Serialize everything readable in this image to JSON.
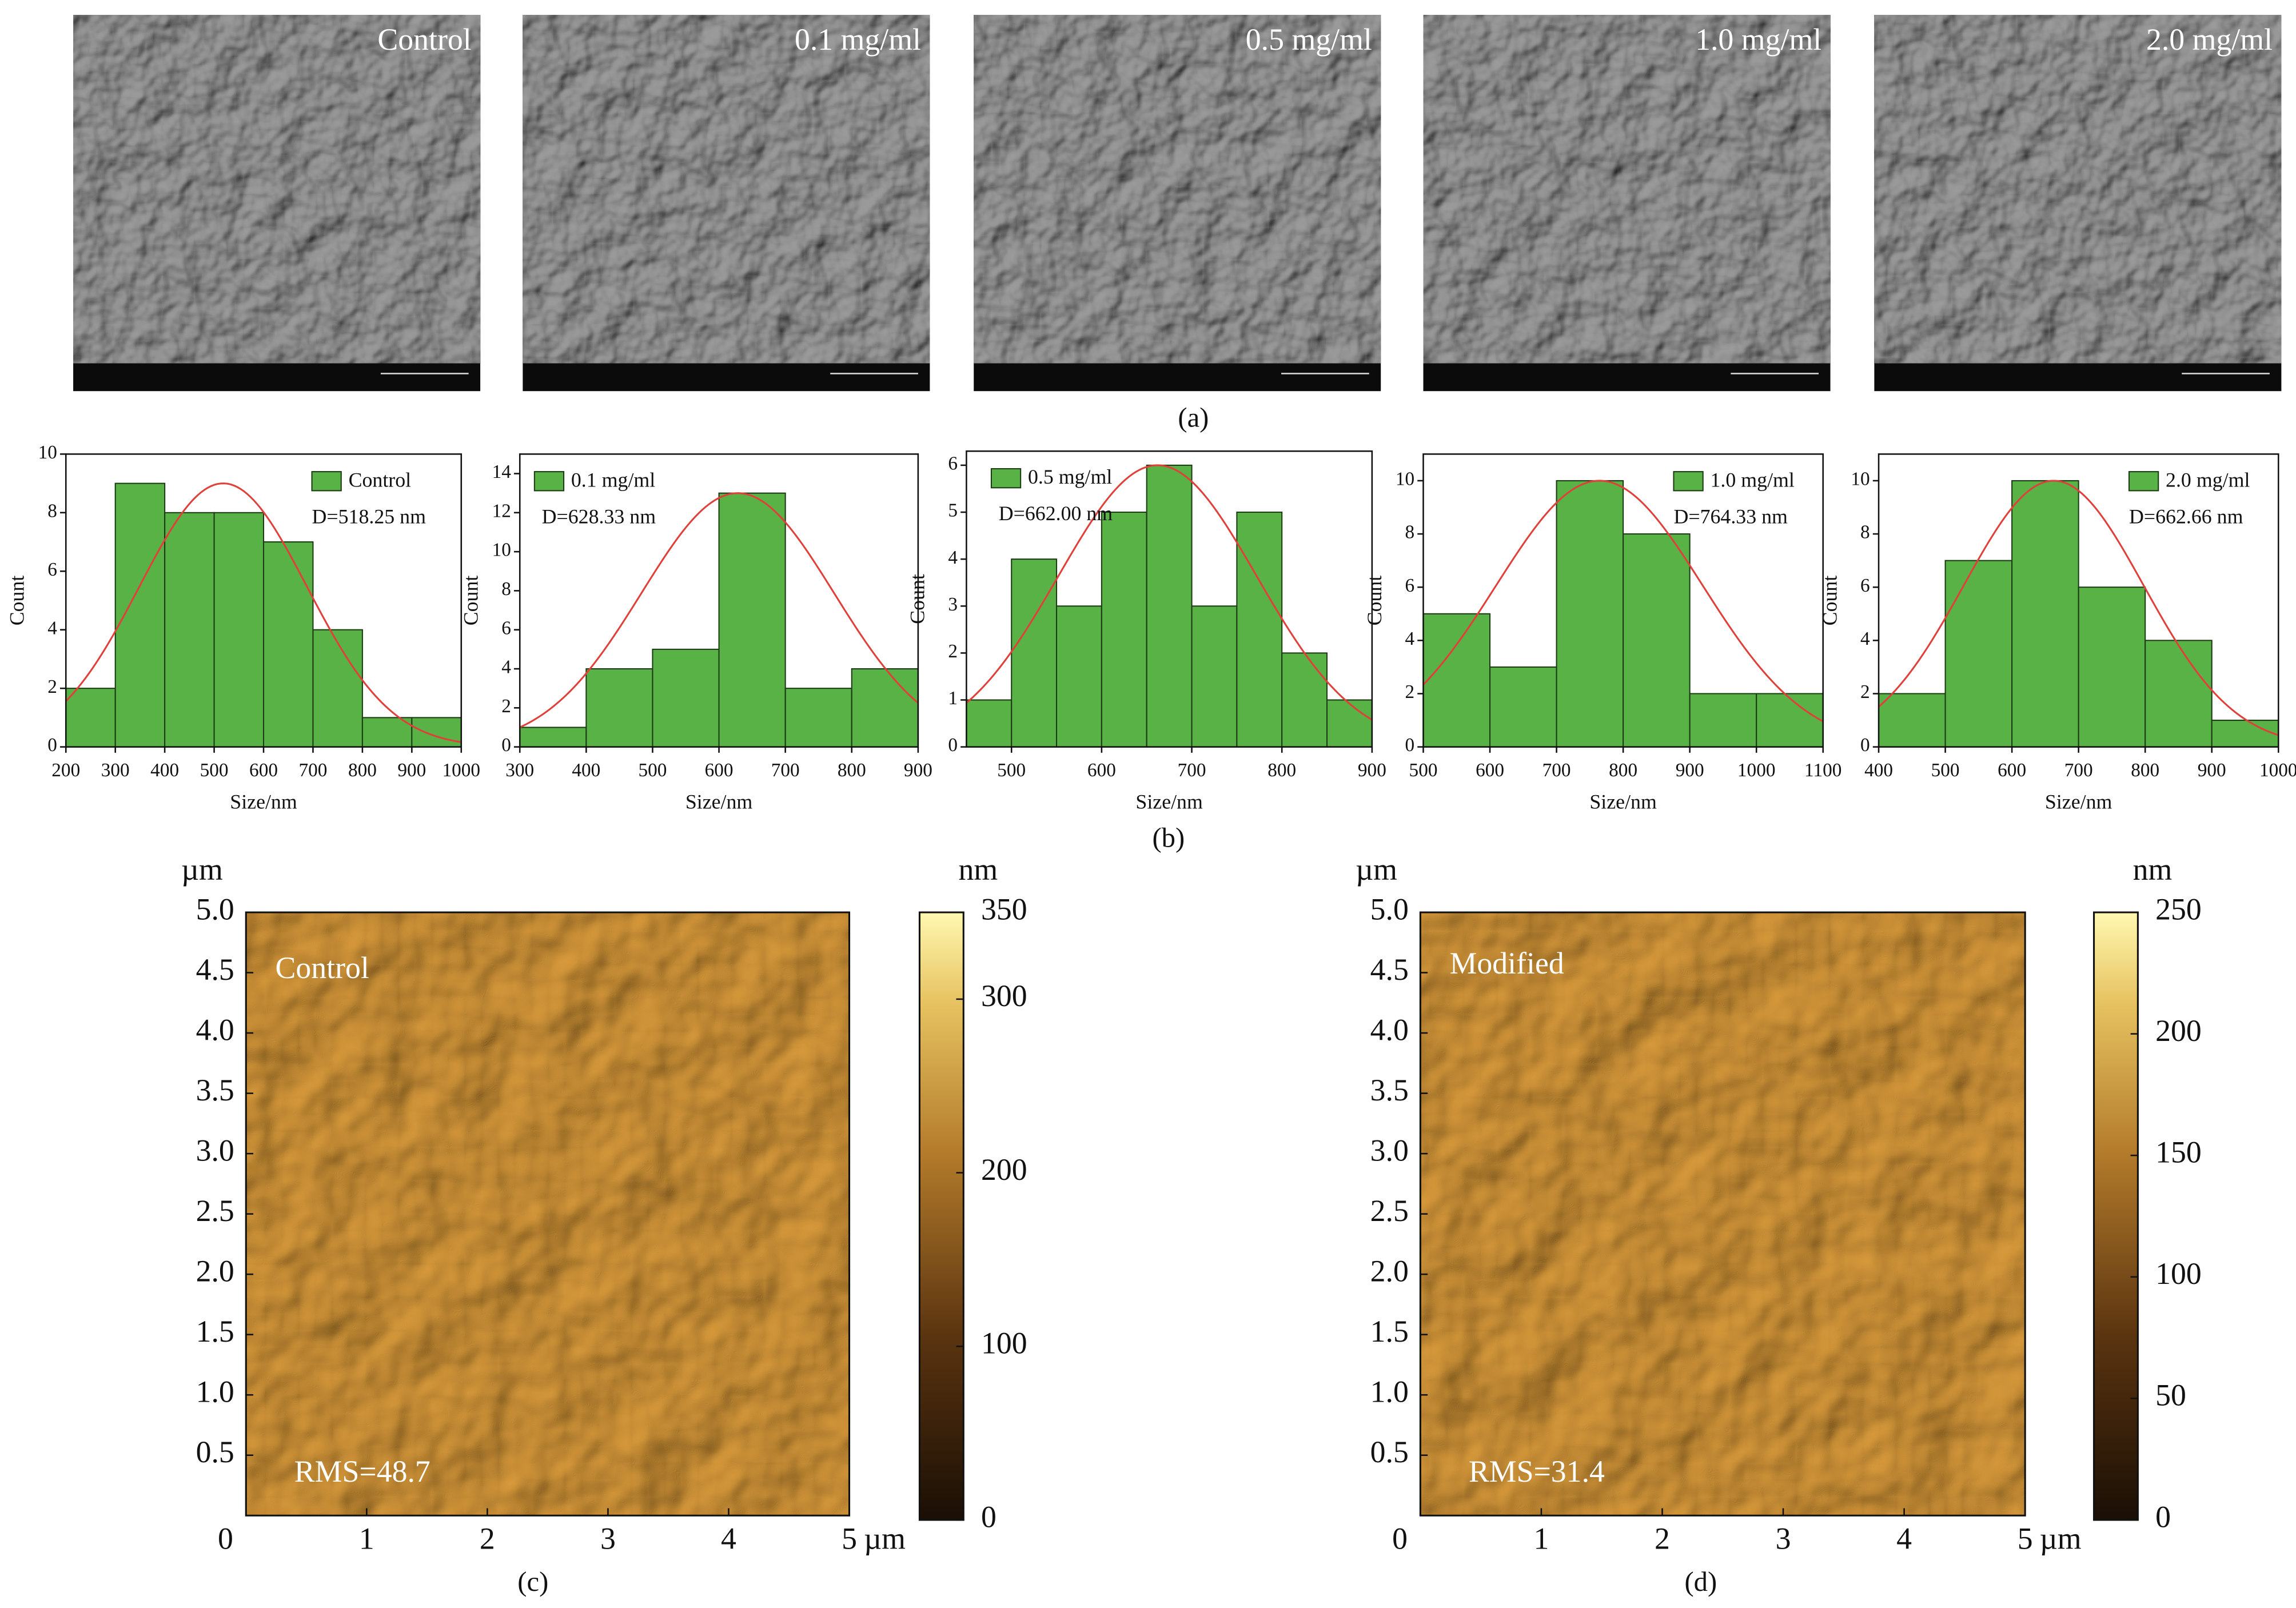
{
  "sem": {
    "labels": [
      "Control",
      "0.1 mg/ml",
      "0.5 mg/ml",
      "1.0 mg/ml",
      "2.0 mg/ml"
    ],
    "caption": "(a)"
  },
  "histogram_caption": "(b)",
  "chart_data": [
    {
      "type": "histogram",
      "bins": [
        200,
        300,
        400,
        500,
        600,
        700,
        800,
        900,
        1000
      ],
      "series": [
        {
          "name": "Control",
          "color": "#58b246",
          "values": [
            2,
            9,
            8,
            8,
            7,
            4,
            1,
            1
          ]
        }
      ],
      "annotation": "D=518.25 nm",
      "legend": "upper right",
      "fit": {
        "color": "#e0403a",
        "mean": 518.25,
        "sigma": 170,
        "peak": 9
      },
      "xlim": [
        200,
        1000
      ],
      "xticks": [
        200,
        300,
        400,
        500,
        600,
        700,
        800,
        900,
        1000
      ],
      "ylim": [
        0,
        10
      ],
      "yticks": [
        0,
        2,
        4,
        6,
        8,
        10
      ],
      "xlabel": "Size/nm",
      "ylabel": "Count"
    },
    {
      "type": "histogram",
      "bins": [
        300,
        400,
        500,
        600,
        700,
        800,
        900
      ],
      "series": [
        {
          "name": "0.1 mg/ml",
          "color": "#58b246",
          "values": [
            1,
            4,
            5,
            13,
            3,
            4
          ]
        }
      ],
      "annotation": "D=628.33 nm",
      "legend": "upper left",
      "fit": {
        "color": "#e0403a",
        "mean": 628.33,
        "sigma": 145,
        "peak": 13
      },
      "xlim": [
        300,
        900
      ],
      "xticks": [
        300,
        400,
        500,
        600,
        700,
        800,
        900
      ],
      "ylim": [
        0,
        15
      ],
      "yticks": [
        0,
        2,
        4,
        6,
        8,
        10,
        12,
        14
      ],
      "xlabel": "Size/nm",
      "ylabel": "Count"
    },
    {
      "type": "histogram",
      "bins": [
        450,
        500,
        550,
        600,
        650,
        700,
        750,
        800,
        850,
        900
      ],
      "series": [
        {
          "name": "0.5 mg/ml",
          "color": "#58b246",
          "values": [
            1,
            4,
            3,
            5,
            6,
            3,
            5,
            2,
            1
          ]
        }
      ],
      "annotation": "D=662.00 nm",
      "legend": "upper left",
      "fit": {
        "color": "#e0403a",
        "mean": 662.0,
        "sigma": 110,
        "peak": 6
      },
      "xlim": [
        450,
        900
      ],
      "xticks": [
        500,
        600,
        700,
        800,
        900
      ],
      "ylim": [
        0,
        6.3
      ],
      "yticks": [
        0,
        1,
        2,
        3,
        4,
        5,
        6
      ],
      "xlabel": "Size/nm",
      "ylabel": "Count"
    },
    {
      "type": "histogram",
      "bins": [
        500,
        600,
        700,
        800,
        900,
        1000,
        1100
      ],
      "series": [
        {
          "name": "1.0 mg/ml",
          "color": "#58b246",
          "values": [
            5,
            3,
            10,
            8,
            2,
            2
          ]
        }
      ],
      "annotation": "D=764.33 nm",
      "legend": "upper right",
      "fit": {
        "color": "#e0403a",
        "mean": 764.33,
        "sigma": 155,
        "peak": 10
      },
      "xlim": [
        500,
        1100
      ],
      "xticks": [
        500,
        600,
        700,
        800,
        900,
        1000,
        1100
      ],
      "ylim": [
        0,
        11
      ],
      "yticks": [
        0,
        2,
        4,
        6,
        8,
        10
      ],
      "xlabel": "Size/nm",
      "ylabel": "Count"
    },
    {
      "type": "histogram",
      "bins": [
        400,
        500,
        600,
        700,
        800,
        900,
        1000
      ],
      "series": [
        {
          "name": "2.0 mg/ml",
          "color": "#58b246",
          "values": [
            2,
            7,
            10,
            6,
            4,
            1
          ]
        }
      ],
      "annotation": "D=662.66 nm",
      "legend": "upper right",
      "fit": {
        "color": "#e0403a",
        "mean": 662.66,
        "sigma": 135,
        "peak": 10
      },
      "xlim": [
        400,
        1000
      ],
      "xticks": [
        400,
        500,
        600,
        700,
        800,
        900,
        1000
      ],
      "ylim": [
        0,
        11
      ],
      "yticks": [
        0,
        2,
        4,
        6,
        8,
        10
      ],
      "xlabel": "Size/nm",
      "ylabel": "Count"
    }
  ],
  "afm": [
    {
      "type": "height-map",
      "label": "Control",
      "rms": "RMS=48.7",
      "caption": "(c)",
      "xlim": [
        0,
        5
      ],
      "xticks": [
        0,
        1,
        2,
        3,
        4,
        5
      ],
      "x_unit": "µm",
      "ylim": [
        0,
        5
      ],
      "yticks": [
        0.5,
        {
          "value": 1,
          "label": "1.0"
        },
        1.5,
        {
          "value": 2,
          "label": "2.0"
        },
        2.5,
        {
          "value": 3,
          "label": "3.0"
        },
        3.5,
        {
          "value": 4,
          "label": "4.0"
        },
        4.5,
        {
          "value": 5,
          "label": "5.0"
        }
      ],
      "y_unit": "µm",
      "colorbar": {
        "unit": "nm",
        "lim": [
          0,
          350
        ],
        "ticks": [
          0,
          100,
          200,
          300,
          350
        ]
      }
    },
    {
      "type": "height-map",
      "label": "Modified",
      "rms": "RMS=31.4",
      "caption": "(d)",
      "xlim": [
        0,
        5
      ],
      "xticks": [
        0,
        1,
        2,
        3,
        4,
        5
      ],
      "x_unit": "µm",
      "ylim": [
        0,
        5
      ],
      "yticks": [
        0.5,
        {
          "value": 1,
          "label": "1.0"
        },
        1.5,
        {
          "value": 2,
          "label": "2.0"
        },
        2.5,
        {
          "value": 3,
          "label": "3.0"
        },
        3.5,
        {
          "value": 4,
          "label": "4.0"
        },
        4.5,
        {
          "value": 5,
          "label": "5.0"
        }
      ],
      "y_unit": "µm",
      "colorbar": {
        "unit": "nm",
        "lim": [
          0,
          250
        ],
        "ticks": [
          0,
          50,
          100,
          150,
          200,
          250
        ]
      }
    }
  ]
}
